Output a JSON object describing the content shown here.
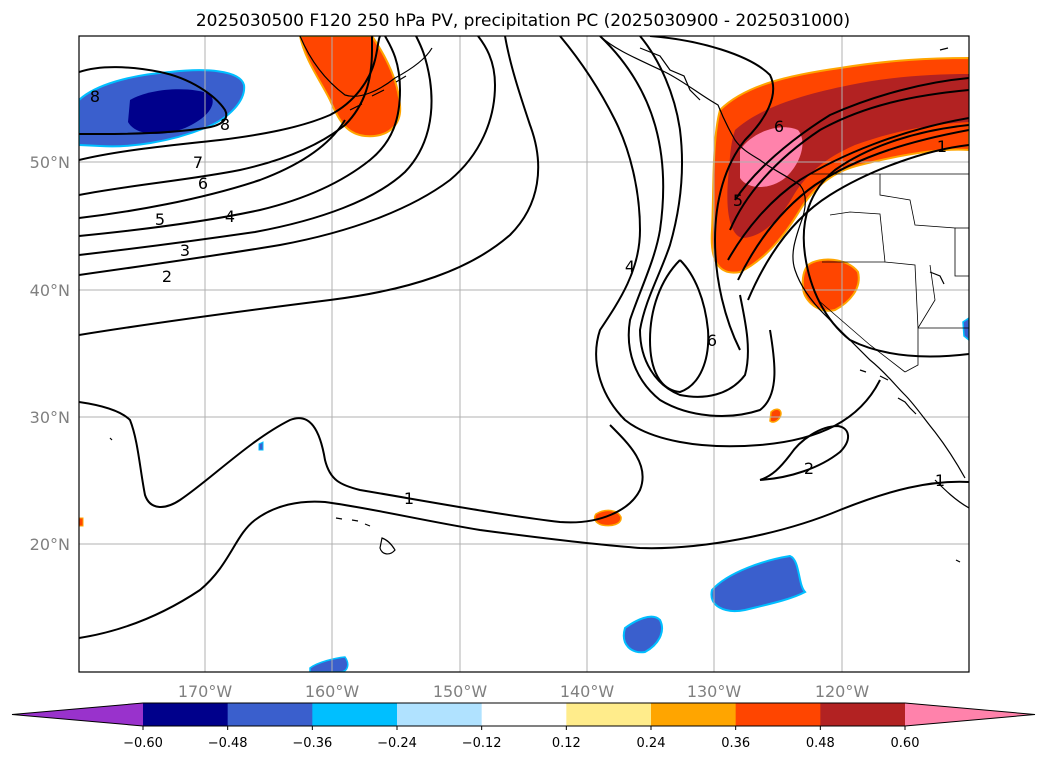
{
  "title": "2025030500 F120 250 hPa PV, precipitation PC (2025030900 - 2025031000)",
  "map": {
    "lon_ticks": [
      "170°W",
      "160°W",
      "150°W",
      "140°W",
      "130°W",
      "120°W"
    ],
    "lat_ticks": [
      "50°N",
      "40°N",
      "30°N",
      "20°N"
    ],
    "pv_contour_labels": [
      "8",
      "8",
      "7",
      "6",
      "5",
      "4",
      "3",
      "2",
      "4",
      "6",
      "1",
      "1",
      "2",
      "6",
      "5",
      "1"
    ]
  },
  "colorbar": {
    "tick_labels": [
      "−0.60",
      "−0.48",
      "−0.36",
      "−0.24",
      "−0.12",
      "0.12",
      "0.24",
      "0.36",
      "0.48",
      "0.60"
    ],
    "colors": [
      "#9932cc",
      "#00008b",
      "#3a5fcd",
      "#00bfff",
      "#b0e2ff",
      "#ffffff",
      "#ffec8b",
      "#ffa500",
      "#ff4500",
      "#b22222",
      "#ff82ab"
    ]
  }
}
